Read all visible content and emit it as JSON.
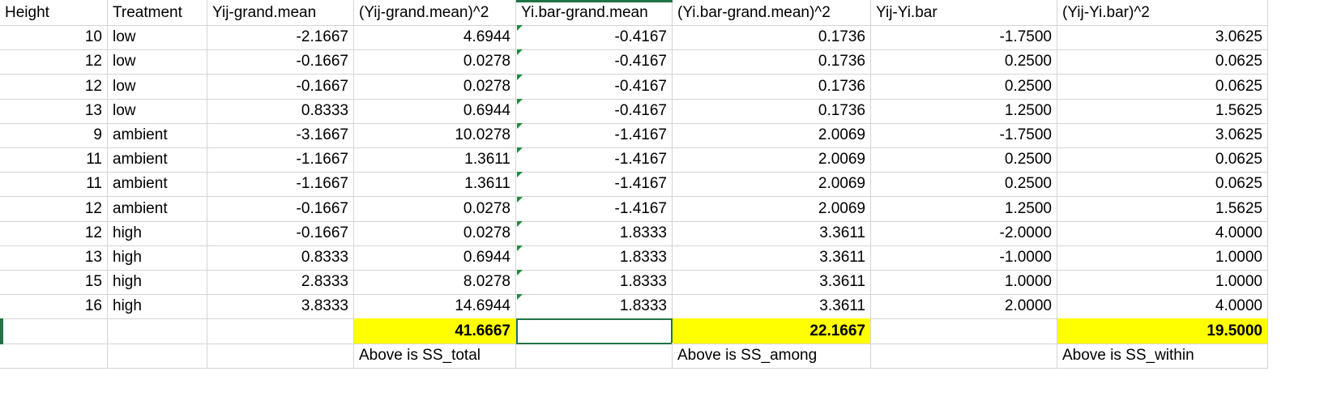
{
  "headers": [
    "Height",
    "Treatment",
    "Yij-grand.mean",
    "(Yij-grand.mean)^2",
    "Yi.bar-grand.mean",
    "(Yi.bar-grand.mean)^2",
    "Yij-Yi.bar",
    "(Yij-Yi.bar)^2"
  ],
  "rows": [
    [
      "10",
      "low",
      "-2.1667",
      "4.6944",
      "-0.4167",
      "0.1736",
      "-1.7500",
      "3.0625"
    ],
    [
      "12",
      "low",
      "-0.1667",
      "0.0278",
      "-0.4167",
      "0.1736",
      "0.2500",
      "0.0625"
    ],
    [
      "12",
      "low",
      "-0.1667",
      "0.0278",
      "-0.4167",
      "0.1736",
      "0.2500",
      "0.0625"
    ],
    [
      "13",
      "low",
      "0.8333",
      "0.6944",
      "-0.4167",
      "0.1736",
      "1.2500",
      "1.5625"
    ],
    [
      "9",
      "ambient",
      "-3.1667",
      "10.0278",
      "-1.4167",
      "2.0069",
      "-1.7500",
      "3.0625"
    ],
    [
      "11",
      "ambient",
      "-1.1667",
      "1.3611",
      "-1.4167",
      "2.0069",
      "0.2500",
      "0.0625"
    ],
    [
      "11",
      "ambient",
      "-1.1667",
      "1.3611",
      "-1.4167",
      "2.0069",
      "0.2500",
      "0.0625"
    ],
    [
      "12",
      "ambient",
      "-0.1667",
      "0.0278",
      "-1.4167",
      "2.0069",
      "1.2500",
      "1.5625"
    ],
    [
      "12",
      "high",
      "-0.1667",
      "0.0278",
      "1.8333",
      "3.3611",
      "-2.0000",
      "4.0000"
    ],
    [
      "13",
      "high",
      "0.8333",
      "0.6944",
      "1.8333",
      "3.3611",
      "-1.0000",
      "1.0000"
    ],
    [
      "15",
      "high",
      "2.8333",
      "8.0278",
      "1.8333",
      "3.3611",
      "1.0000",
      "1.0000"
    ],
    [
      "16",
      "high",
      "3.8333",
      "14.6944",
      "1.8333",
      "3.3611",
      "2.0000",
      "4.0000"
    ]
  ],
  "totals": [
    "",
    "",
    "",
    "41.6667",
    "",
    "22.1667",
    "",
    "19.5000"
  ],
  "notes": [
    "",
    "",
    "",
    "Above is SS_total",
    "",
    "Above is SS_among",
    "",
    "Above is SS_within"
  ],
  "colors": {
    "highlight": "#ffff00",
    "selection": "#217346",
    "gridline": "#d4d4d4",
    "error_flag": "#1e8a3a"
  }
}
